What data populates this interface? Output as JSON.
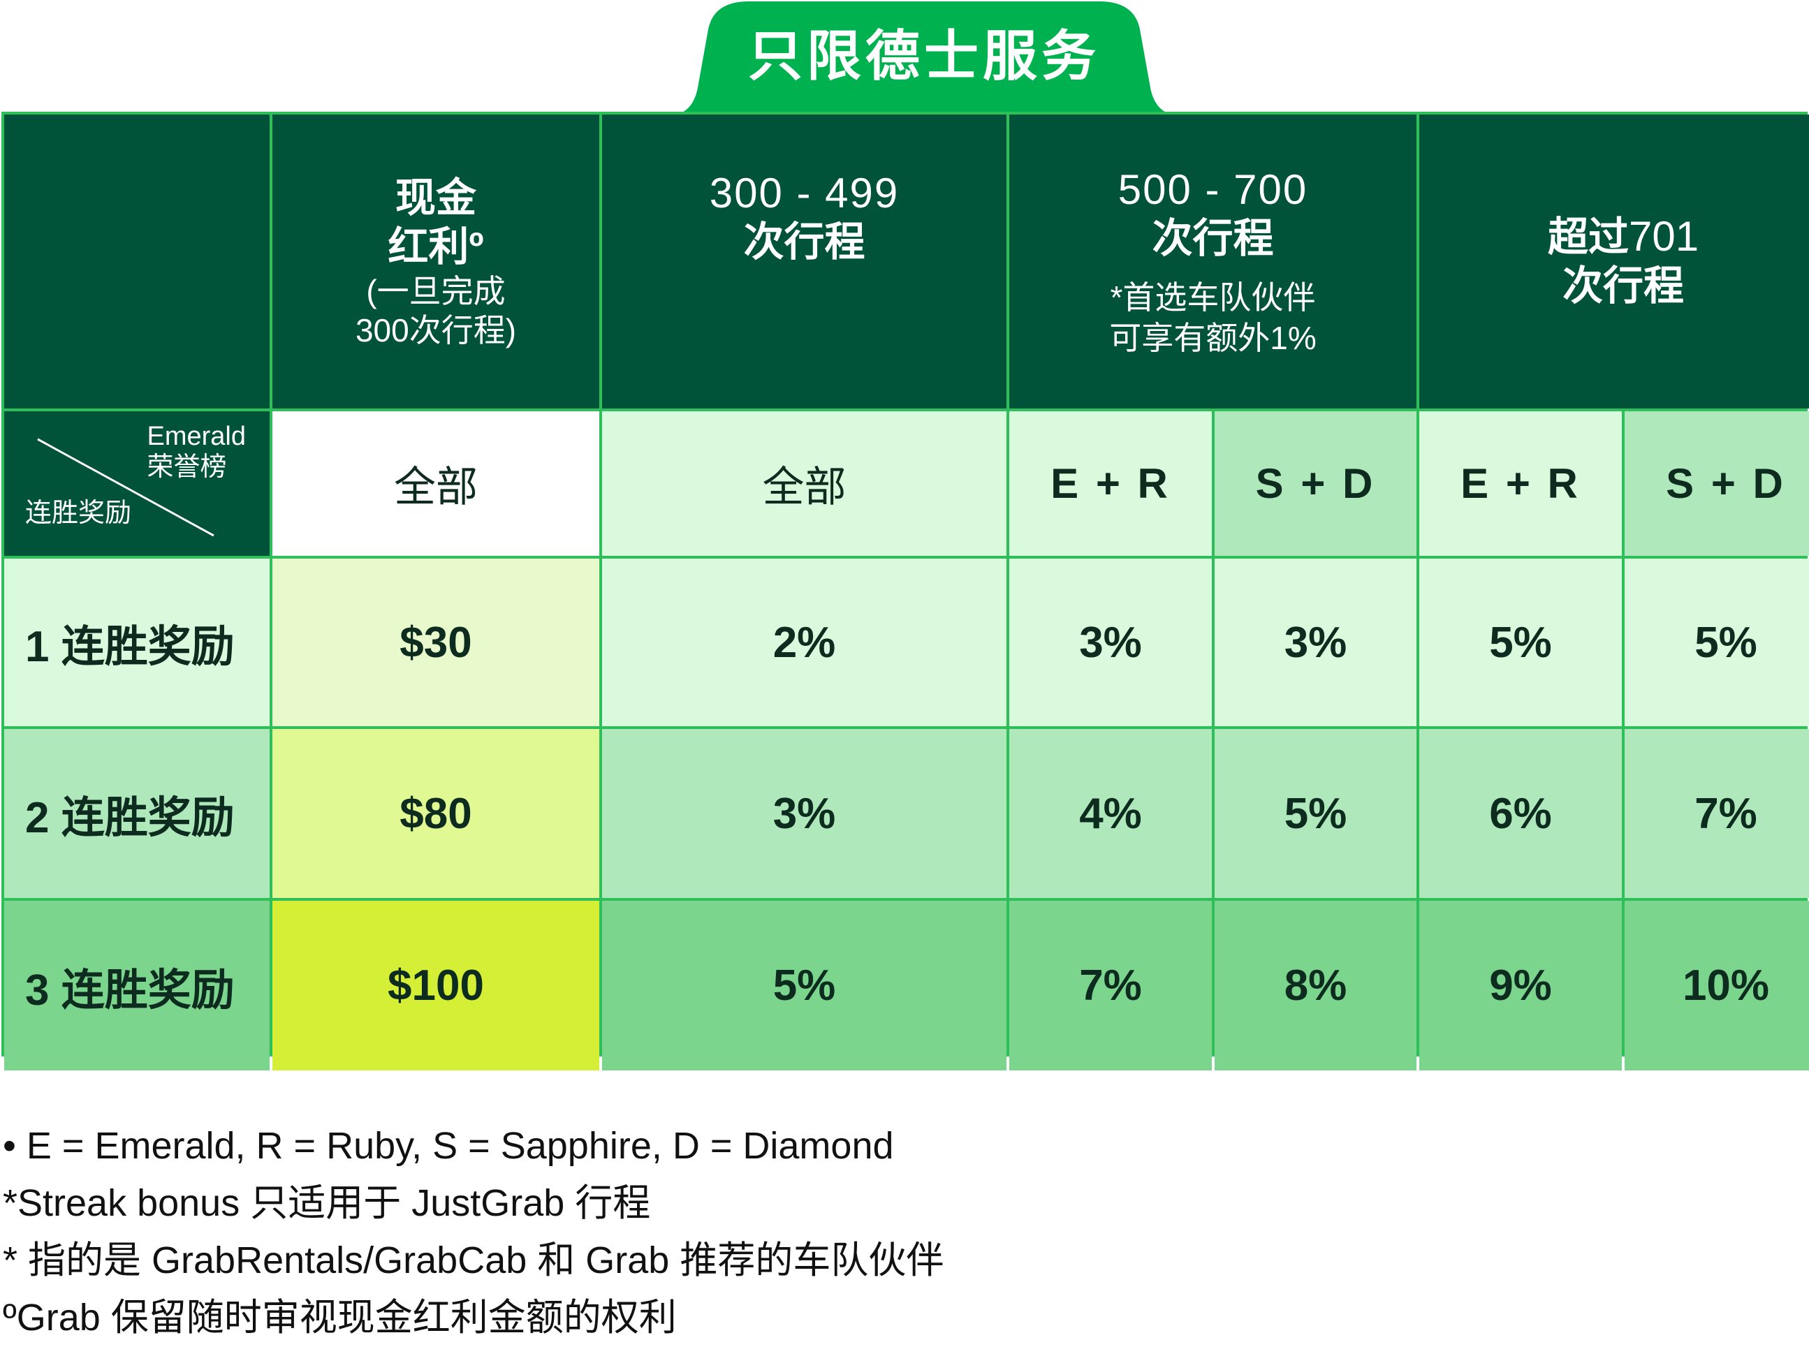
{
  "tab_label": "只限德士服务",
  "header": {
    "col_cash": [
      "现金",
      "红利º",
      "(一旦完成",
      "300次行程)"
    ],
    "col_300": [
      "300 - 499",
      "次行程"
    ],
    "col_500": [
      "500 - 700",
      "次行程"
    ],
    "col_500_note": [
      "*首选车队伙伴",
      "可享有额外1%"
    ],
    "col_701_prefix": "超过",
    "col_701_num": "701",
    "col_701_sub": "次行程"
  },
  "corner": {
    "tier_label_en": "Emerald",
    "tier_label_cn": "荣誉榜",
    "streak_label": "连胜奖励"
  },
  "subheaders": [
    "全部",
    "全部",
    "E + R",
    "S + D",
    "E + R",
    "S + D"
  ],
  "rows": [
    {
      "label": "1 连胜奖励",
      "values": [
        "$30",
        "2%",
        "3%",
        "3%",
        "5%",
        "5%"
      ]
    },
    {
      "label": "2 连胜奖励",
      "values": [
        "$80",
        "3%",
        "4%",
        "5%",
        "6%",
        "7%"
      ]
    },
    {
      "label": "3 连胜奖励",
      "values": [
        "$100",
        "5%",
        "7%",
        "8%",
        "9%",
        "10%"
      ]
    }
  ],
  "notes": [
    "• E = Emerald, R = Ruby, S = Sapphire, D = Diamond",
    "*Streak bonus 只适用于 JustGrab 行程",
    "* 指的是 GrabRentals/GrabCab 和 Grab 推荐的车队伙伴",
    "ºGrab 保留随时审视现金红利金额的权利"
  ],
  "colors": {
    "brand_green": "#00b14f",
    "header_dark": "#005239",
    "row1_light": "#d9fadc",
    "row2_mid": "#afe8bb",
    "row3_strong": "#7bd58d",
    "cash_row1": "#e8facc",
    "cash_row2": "#e0f993",
    "cash_row3": "#d4ef36"
  }
}
